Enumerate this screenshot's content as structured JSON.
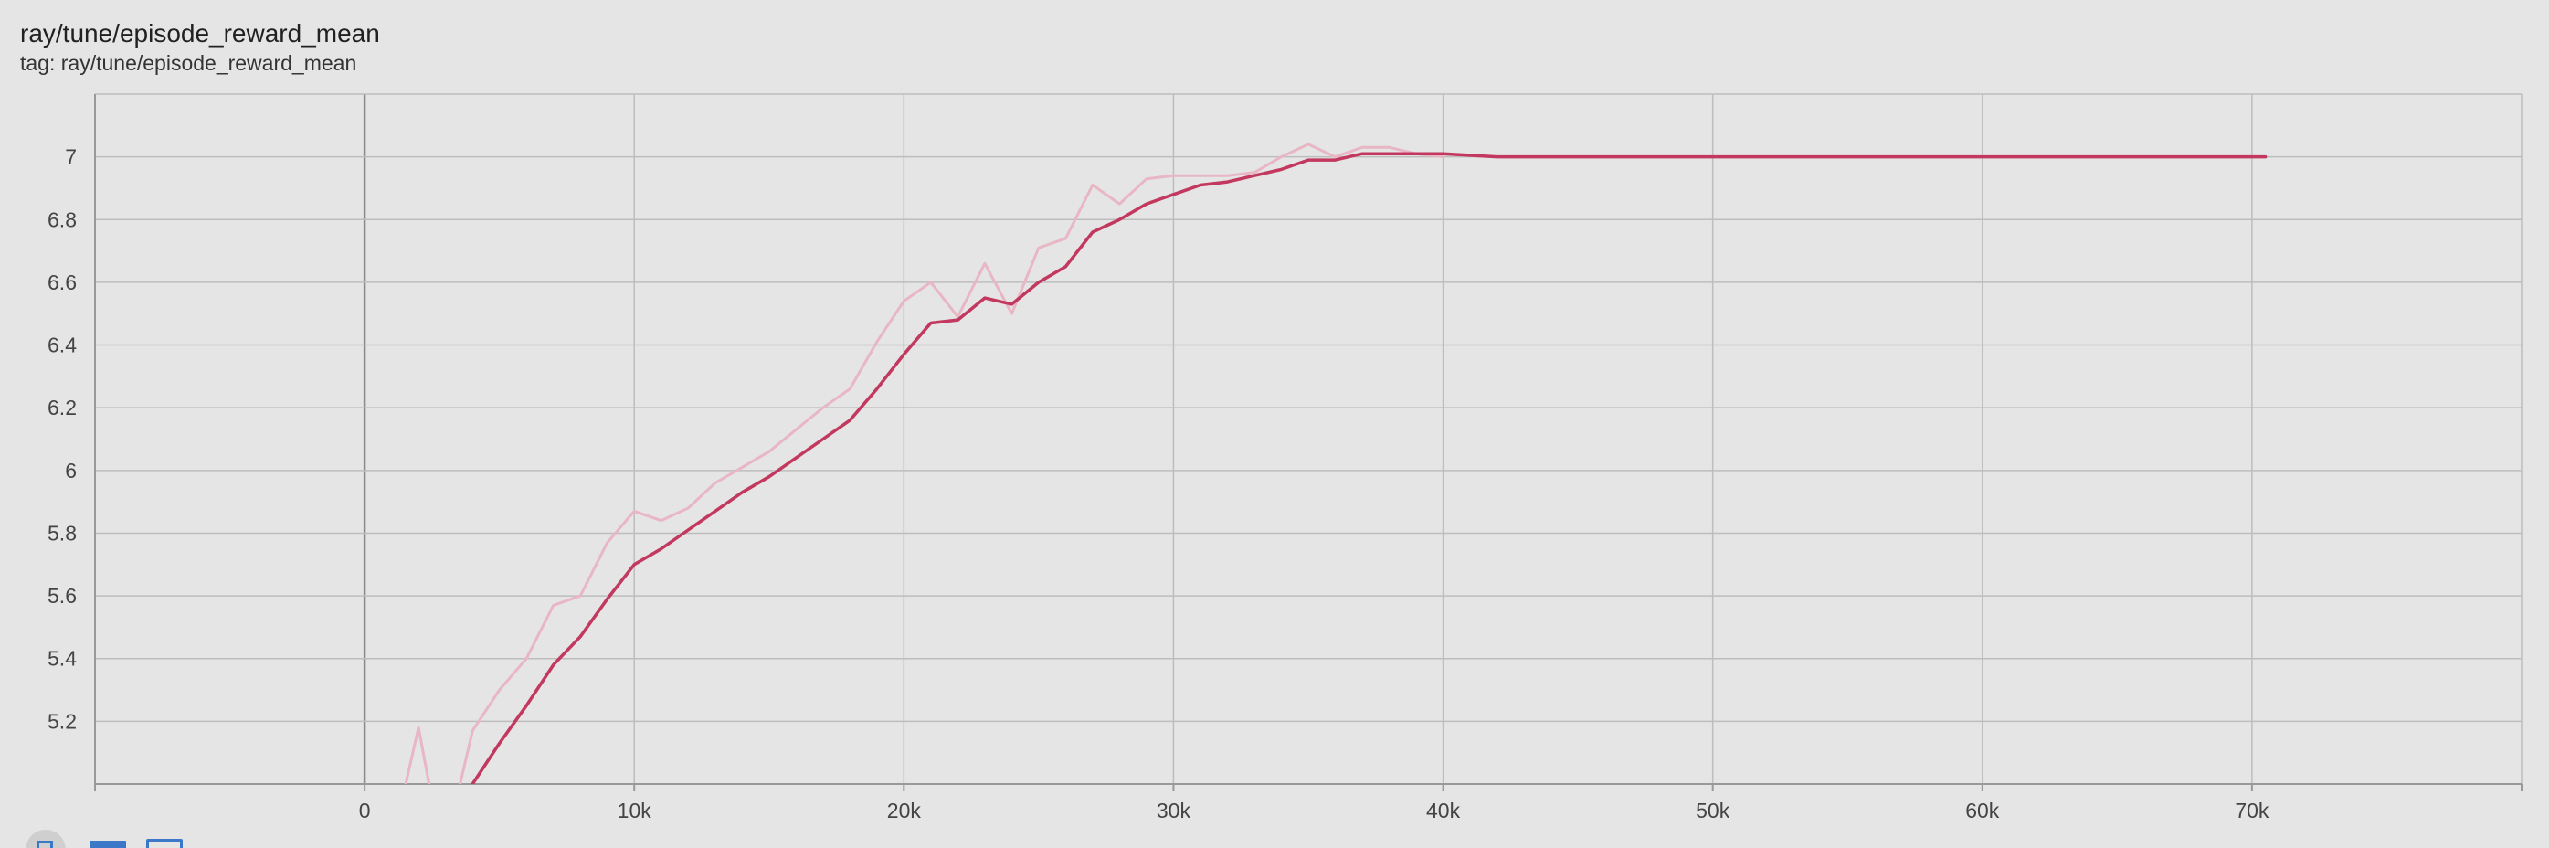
{
  "card": {
    "title": "ray/tune/episode_reward_mean",
    "subtitle": "tag: ray/tune/episode_reward_mean"
  },
  "chart_data": {
    "type": "line",
    "xlim": [
      -10000,
      80000
    ],
    "ylim": [
      5.0,
      7.2
    ],
    "x_ticks": [
      0,
      10000,
      20000,
      30000,
      40000,
      50000,
      60000,
      70000
    ],
    "x_tick_labels": [
      "0",
      "10k",
      "20k",
      "30k",
      "40k",
      "50k",
      "60k",
      "70k"
    ],
    "y_ticks": [
      5.2,
      5.4,
      5.6,
      5.8,
      6.0,
      6.2,
      6.4,
      6.6,
      6.8,
      7.0
    ],
    "y_tick_labels": [
      "5.2",
      "5.4",
      "5.6",
      "5.8",
      "6",
      "6.2",
      "6.4",
      "6.6",
      "6.8",
      "7"
    ],
    "grid": true,
    "legend": "none",
    "colors": {
      "smoothed": "#c2385f",
      "raw": "#e8b6c4",
      "grid": "#bdbdbd",
      "axis": "#999999",
      "zero_line": "#8a8a8a"
    },
    "series": [
      {
        "values_x": [
          1000,
          2000,
          2500,
          3000,
          4000,
          5000,
          6000,
          7000,
          8000,
          9000,
          10000,
          11000,
          12000,
          13000,
          14000,
          15000,
          16000,
          17000,
          18000,
          19000,
          20000,
          21000,
          22000,
          23000,
          24000,
          25000,
          26000,
          27000,
          28000,
          29000,
          30000,
          31000,
          32000,
          33000,
          34000,
          35000,
          36000,
          37000,
          38000,
          39000,
          40000
        ],
        "values_y": [
          4.8,
          5.18,
          4.95,
          4.8,
          5.17,
          5.3,
          5.4,
          5.57,
          5.6,
          5.77,
          5.87,
          5.84,
          5.88,
          5.96,
          6.01,
          6.06,
          6.13,
          6.2,
          6.26,
          6.41,
          6.54,
          6.6,
          6.49,
          6.66,
          6.5,
          6.71,
          6.74,
          6.91,
          6.85,
          6.93,
          6.94,
          6.94,
          6.94,
          6.95,
          7.0,
          7.04,
          7.0,
          7.03,
          7.03,
          7.01,
          7.0
        ]
      },
      {
        "values_x": [
          4000,
          5000,
          6000,
          7000,
          8000,
          9000,
          10000,
          11000,
          12000,
          13000,
          14000,
          15000,
          16000,
          17000,
          18000,
          19000,
          20000,
          21000,
          22000,
          23000,
          24000,
          25000,
          26000,
          27000,
          28000,
          29000,
          30000,
          31000,
          32000,
          33000,
          34000,
          35000,
          36000,
          37000,
          38500,
          40000,
          42000,
          45000,
          50000,
          55000,
          60000,
          65000,
          70000,
          70500
        ],
        "values_y": [
          5.0,
          5.13,
          5.25,
          5.38,
          5.47,
          5.59,
          5.7,
          5.75,
          5.81,
          5.87,
          5.93,
          5.98,
          6.04,
          6.1,
          6.16,
          6.26,
          6.37,
          6.47,
          6.48,
          6.55,
          6.53,
          6.6,
          6.65,
          6.76,
          6.8,
          6.85,
          6.88,
          6.91,
          6.92,
          6.94,
          6.96,
          6.99,
          6.99,
          7.01,
          7.01,
          7.01,
          7.0,
          7.0,
          7.0,
          7.0,
          7.0,
          7.0,
          7.0,
          7.0
        ]
      }
    ]
  }
}
